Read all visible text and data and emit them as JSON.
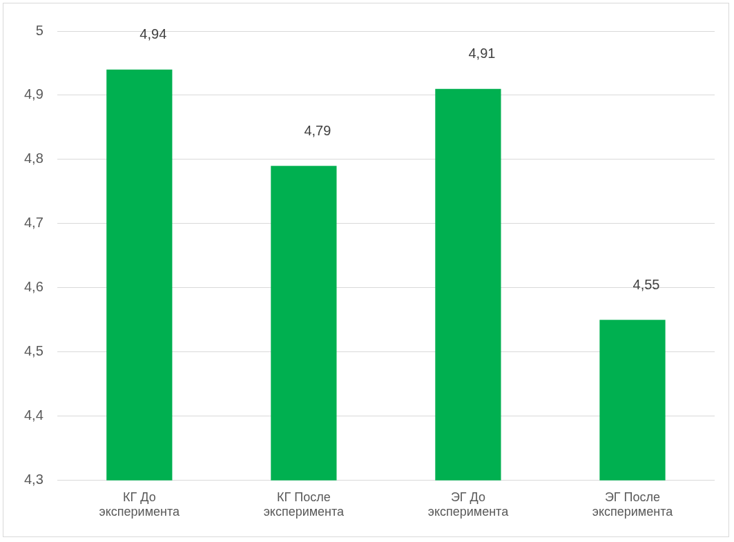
{
  "chart_data": {
    "type": "bar",
    "categories": [
      "КГ До эксперимента",
      "КГ После эксперимента",
      "ЭГ До эксперимента",
      "ЭГ После эксперимента"
    ],
    "values": [
      4.94,
      4.79,
      4.91,
      4.55
    ],
    "color": "#00b050",
    "value_labels": [
      "4,94",
      "4,79",
      "4,91",
      "4,55"
    ],
    "ylim": [
      4.3,
      5
    ],
    "yticks": [
      {
        "value": 4.3,
        "label": "4,3"
      },
      {
        "value": 4.4,
        "label": "4,4"
      },
      {
        "value": 4.5,
        "label": "4,5"
      },
      {
        "value": 4.6,
        "label": "4,6"
      },
      {
        "value": 4.7,
        "label": "4,7"
      },
      {
        "value": 4.8,
        "label": "4,8"
      },
      {
        "value": 4.9,
        "label": "4,9"
      },
      {
        "value": 5,
        "label": "5"
      }
    ],
    "grid": "y",
    "legend": false
  }
}
